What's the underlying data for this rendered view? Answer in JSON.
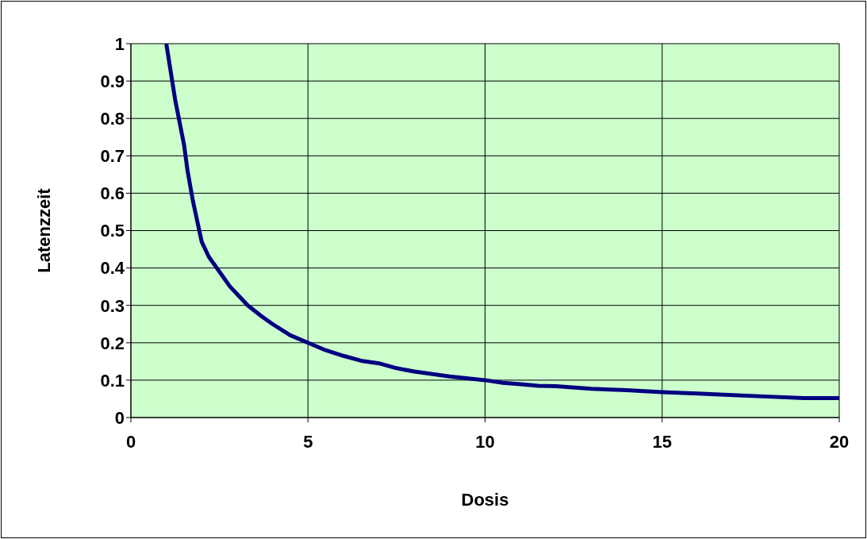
{
  "chart_data": {
    "type": "line",
    "xlabel": "Dosis",
    "ylabel": "Latenzzeit",
    "x": [
      1,
      1.25,
      1.5,
      1.6,
      1.75,
      2,
      2.2,
      2.5,
      2.8,
      3,
      3.3,
      3.7,
      4,
      4.5,
      5,
      5.5,
      6,
      6.5,
      7,
      7.5,
      8,
      9,
      10,
      10.5,
      11,
      11.5,
      12,
      13,
      14,
      15,
      16,
      17,
      18,
      19,
      20
    ],
    "series": [
      {
        "color": "#000080",
        "values": [
          1.0,
          0.85,
          0.73,
          0.66,
          0.58,
          0.47,
          0.43,
          0.39,
          0.35,
          0.33,
          0.3,
          0.27,
          0.25,
          0.22,
          0.2,
          0.18,
          0.165,
          0.152,
          0.145,
          0.132,
          0.123,
          0.11,
          0.1,
          0.093,
          0.089,
          0.085,
          0.084,
          0.077,
          0.073,
          0.068,
          0.064,
          0.06,
          0.056,
          0.052,
          0.052
        ]
      }
    ],
    "xlim": [
      0,
      20
    ],
    "xticks": [
      0,
      5,
      10,
      15,
      20
    ],
    "ylim": [
      0,
      1
    ],
    "yticks": [
      0,
      0.1,
      0.2,
      0.3,
      0.4,
      0.5,
      0.6,
      0.7,
      0.8,
      0.9,
      1
    ],
    "grid": true,
    "marker": "none",
    "line_style": "solid"
  }
}
